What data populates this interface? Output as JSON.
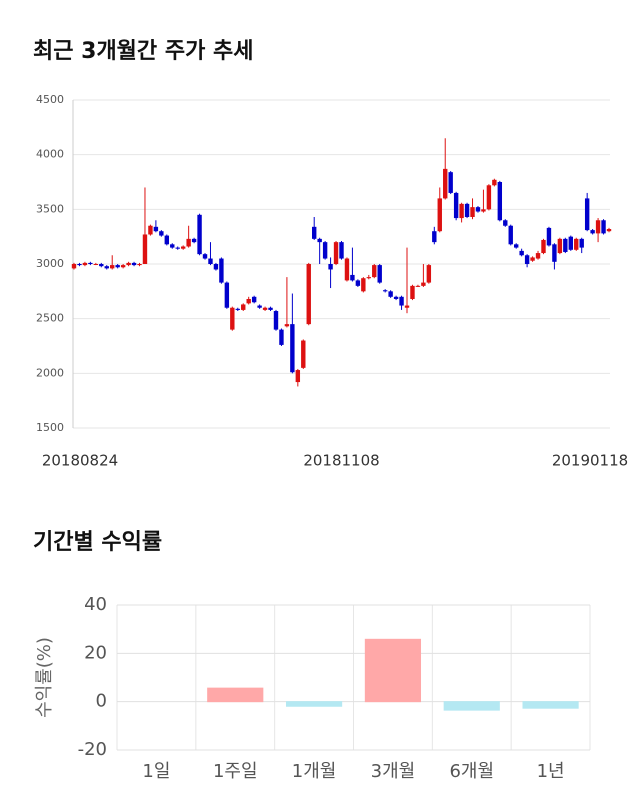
{
  "chart_data": [
    {
      "type": "candlestick",
      "title": "최근 3개월간 주가 추세",
      "categories": [
        "20180824",
        null,
        null,
        null,
        null,
        null,
        null,
        null,
        null,
        null,
        null,
        null,
        null,
        null,
        null,
        null,
        null,
        null,
        null,
        null,
        null,
        null,
        null,
        null,
        null,
        null,
        null,
        null,
        null,
        null,
        null,
        null,
        null,
        null,
        null,
        null,
        null,
        null,
        null,
        null,
        null,
        null,
        null,
        null,
        null,
        null,
        null,
        null,
        null,
        "20181108",
        null,
        null,
        null,
        null,
        null,
        null,
        null,
        null,
        null,
        null,
        null,
        null,
        null,
        null,
        null,
        null,
        null,
        null,
        null,
        null,
        null,
        null,
        null,
        null,
        null,
        null,
        null,
        null,
        null,
        null,
        null,
        null,
        null,
        null,
        null,
        null,
        null,
        null,
        null,
        null,
        null,
        null,
        null,
        null,
        null,
        null,
        null,
        null,
        "20190118"
      ],
      "open": [
        2960,
        3000,
        2990,
        3010,
        3000,
        3000,
        2980,
        2960,
        2990,
        2970,
        2990,
        3010,
        2990,
        3000,
        3270,
        3340,
        3300,
        3260,
        3180,
        3150,
        3140,
        3160,
        3230,
        3450,
        3090,
        3050,
        3000,
        3050,
        2830,
        2400,
        2590,
        2580,
        2640,
        2700,
        2620,
        2580,
        2600,
        2570,
        2400,
        2430,
        2450,
        1920,
        2050,
        2450,
        3340,
        3230,
        3200,
        3000,
        3000,
        3200,
        2850,
        2900,
        2850,
        2750,
        2870,
        2880,
        2990,
        2760,
        2750,
        2700,
        2700,
        2600,
        2680,
        2800,
        2800,
        2830,
        3300,
        3300,
        3600,
        3840,
        3650,
        3420,
        3550,
        3430,
        3520,
        3480,
        3500,
        3720,
        3750,
        3400,
        3350,
        3180,
        3120,
        3080,
        3030,
        3050,
        3100,
        3330,
        3180,
        3100,
        3230,
        3250,
        3130,
        3230,
        3600,
        3310,
        3280,
        3400,
        3300
      ],
      "high": [
        3010,
        3010,
        3020,
        3020,
        3010,
        3010,
        2990,
        3080,
        3000,
        3000,
        3020,
        3020,
        3010,
        3700,
        3360,
        3400,
        3310,
        3270,
        3190,
        3160,
        3170,
        3350,
        3240,
        3460,
        3100,
        3200,
        3010,
        3060,
        2840,
        2610,
        2600,
        2640,
        2700,
        2710,
        2630,
        2610,
        2610,
        2580,
        2410,
        2880,
        2730,
        2040,
        2310,
        3010,
        3430,
        3240,
        3210,
        3060,
        3210,
        3210,
        3060,
        3150,
        2860,
        2880,
        2900,
        3000,
        3000,
        2770,
        2760,
        2710,
        2710,
        3150,
        2810,
        2810,
        3000,
        3000,
        3340,
        3700,
        4150,
        3850,
        3660,
        3560,
        3560,
        3600,
        3530,
        3680,
        3730,
        3780,
        3760,
        3410,
        3360,
        3190,
        3140,
        3090,
        3070,
        3120,
        3230,
        3340,
        3190,
        3240,
        3240,
        3260,
        3240,
        3240,
        3650,
        3320,
        3420,
        3410,
        3330
      ],
      "low": [
        2950,
        2980,
        2980,
        2990,
        2990,
        2970,
        2950,
        2950,
        2960,
        2960,
        2980,
        2980,
        2980,
        3000,
        3260,
        3290,
        3250,
        3170,
        3140,
        3130,
        3130,
        3150,
        3190,
        3080,
        3040,
        2990,
        2940,
        2820,
        2590,
        2390,
        2570,
        2570,
        2630,
        2640,
        2590,
        2570,
        2570,
        2390,
        2250,
        2420,
        2000,
        1880,
        2040,
        2440,
        3220,
        3000,
        3040,
        2780,
        2990,
        3040,
        2840,
        2840,
        2790,
        2740,
        2860,
        2870,
        2820,
        2740,
        2690,
        2670,
        2580,
        2550,
        2670,
        2790,
        2790,
        2820,
        3180,
        3290,
        3590,
        3640,
        3400,
        3380,
        3420,
        3410,
        3470,
        3470,
        3490,
        3710,
        3390,
        3340,
        3170,
        3140,
        3070,
        2970,
        3020,
        3040,
        3090,
        3160,
        2950,
        3090,
        3100,
        3120,
        3120,
        3100,
        3300,
        3270,
        3200,
        3270,
        3290
      ],
      "close": [
        3000,
        2990,
        3010,
        3000,
        3000,
        2980,
        2960,
        2990,
        2970,
        2990,
        3010,
        2990,
        3000,
        3270,
        3350,
        3300,
        3260,
        3180,
        3150,
        3140,
        3160,
        3230,
        3200,
        3090,
        3050,
        3000,
        2950,
        2830,
        2600,
        2600,
        2580,
        2630,
        2680,
        2650,
        2600,
        2600,
        2580,
        2400,
        2260,
        2450,
        2010,
        2030,
        2300,
        3000,
        3230,
        3200,
        3050,
        2950,
        3200,
        3050,
        3050,
        2850,
        2800,
        2870,
        2880,
        2990,
        2830,
        2750,
        2700,
        2680,
        2620,
        2620,
        2800,
        2800,
        2830,
        2990,
        3200,
        3600,
        3870,
        3650,
        3420,
        3550,
        3430,
        3520,
        3480,
        3500,
        3720,
        3770,
        3400,
        3350,
        3180,
        3150,
        3080,
        3000,
        3060,
        3100,
        3220,
        3170,
        3020,
        3230,
        3110,
        3130,
        3230,
        3150,
        3310,
        3280,
        3400,
        3280,
        3320
      ],
      "up_color": "#dd1111",
      "down_color": "#0000cc",
      "ylim": [
        1500,
        4500
      ],
      "yticks": [
        1500,
        2000,
        2500,
        3000,
        3500,
        4000,
        4500
      ],
      "grid": true
    },
    {
      "type": "bar",
      "title": "기간별 수익률",
      "y_label": "수익률(%)",
      "categories": [
        "1일",
        "1주일",
        "1개월",
        "3개월",
        "6개월",
        "1년"
      ],
      "values": [
        0,
        5.6,
        -1.9,
        25.8,
        -3.5,
        -2.7
      ],
      "positive_color": "#ffa8a8",
      "negative_color": "#b4e8f2",
      "ylim": [
        -20,
        40
      ],
      "yticks": [
        -20,
        0,
        20,
        40
      ],
      "grid": true
    }
  ]
}
